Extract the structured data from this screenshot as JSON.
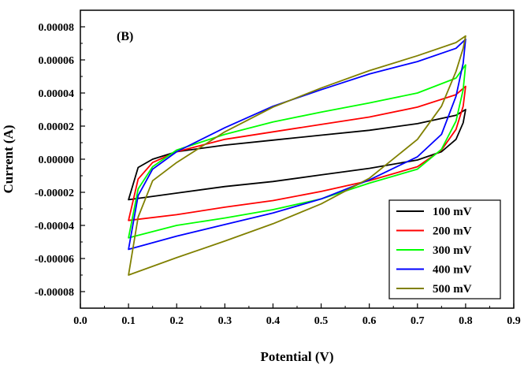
{
  "chart_data": {
    "type": "line",
    "panel_label": "(B)",
    "xlabel": "Potential (V)",
    "ylabel": "Current (A)",
    "xlim": [
      0.0,
      0.9
    ],
    "ylim": [
      -9e-05,
      9e-05
    ],
    "xticks": [
      0.0,
      0.1,
      0.2,
      0.3,
      0.4,
      0.5,
      0.6,
      0.7,
      0.8,
      0.9
    ],
    "xtick_labels": [
      "0.0",
      "0.1",
      "0.2",
      "0.3",
      "0.4",
      "0.5",
      "0.6",
      "0.7",
      "0.8",
      "0.9"
    ],
    "yticks": [
      8e-05,
      6e-05,
      4e-05,
      2e-05,
      0.0,
      -2e-05,
      -4e-05,
      -6e-05,
      -8e-05
    ],
    "ytick_labels": [
      "0.00008",
      "0.00006",
      "0.00004",
      "0.00002",
      "0.00000",
      "-0.00002",
      "-0.00004",
      "-0.00006",
      "-0.00008"
    ],
    "grid": false,
    "legend_position": "bottom-right",
    "series": [
      {
        "name": "100 mV",
        "color": "#000000",
        "forward": [
          [
            0.1,
            -2.45e-05
          ],
          [
            0.12,
            -5e-06
          ],
          [
            0.15,
            0.0
          ],
          [
            0.2,
            4.5e-06
          ],
          [
            0.3,
            8.5e-06
          ],
          [
            0.4,
            1.15e-05
          ],
          [
            0.5,
            1.45e-05
          ],
          [
            0.6,
            1.75e-05
          ],
          [
            0.7,
            2.15e-05
          ],
          [
            0.78,
            2.65e-05
          ],
          [
            0.8,
            3e-05
          ]
        ],
        "reverse": [
          [
            0.8,
            3e-05
          ],
          [
            0.795,
            2.2e-05
          ],
          [
            0.78,
            1.2e-05
          ],
          [
            0.75,
            4.5e-06
          ],
          [
            0.7,
            -5e-07
          ],
          [
            0.6,
            -5.5e-06
          ],
          [
            0.5,
            -9.5e-06
          ],
          [
            0.4,
            -1.35e-05
          ],
          [
            0.3,
            -1.65e-05
          ],
          [
            0.2,
            -2.05e-05
          ],
          [
            0.1,
            -2.45e-05
          ]
        ]
      },
      {
        "name": "200 mV",
        "color": "#ff0000",
        "forward": [
          [
            0.1,
            -3.7e-05
          ],
          [
            0.12,
            -1.2e-05
          ],
          [
            0.15,
            -2e-06
          ],
          [
            0.2,
            4.5e-06
          ],
          [
            0.3,
            1.2e-05
          ],
          [
            0.4,
            1.65e-05
          ],
          [
            0.5,
            2.1e-05
          ],
          [
            0.6,
            2.55e-05
          ],
          [
            0.7,
            3.15e-05
          ],
          [
            0.78,
            3.9e-05
          ],
          [
            0.8,
            4.4e-05
          ]
        ],
        "reverse": [
          [
            0.8,
            4.4e-05
          ],
          [
            0.795,
            3.2e-05
          ],
          [
            0.78,
            1.8e-05
          ],
          [
            0.75,
            5.5e-06
          ],
          [
            0.7,
            -4.5e-06
          ],
          [
            0.6,
            -1.3e-05
          ],
          [
            0.5,
            -1.95e-05
          ],
          [
            0.4,
            -2.5e-05
          ],
          [
            0.3,
            -2.9e-05
          ],
          [
            0.2,
            -3.35e-05
          ],
          [
            0.1,
            -3.7e-05
          ]
        ]
      },
      {
        "name": "300 mV",
        "color": "#00ff00",
        "forward": [
          [
            0.1,
            -4.75e-05
          ],
          [
            0.12,
            -1.8e-05
          ],
          [
            0.15,
            -4.5e-06
          ],
          [
            0.2,
            5.5e-06
          ],
          [
            0.3,
            1.5e-05
          ],
          [
            0.4,
            2.25e-05
          ],
          [
            0.5,
            2.85e-05
          ],
          [
            0.6,
            3.4e-05
          ],
          [
            0.7,
            4e-05
          ],
          [
            0.78,
            4.9e-05
          ],
          [
            0.8,
            5.7e-05
          ]
        ],
        "reverse": [
          [
            0.8,
            5.7e-05
          ],
          [
            0.795,
            4.2e-05
          ],
          [
            0.78,
            2.3e-05
          ],
          [
            0.75,
            6e-06
          ],
          [
            0.7,
            -6e-06
          ],
          [
            0.6,
            -1.45e-05
          ],
          [
            0.5,
            -2.4e-05
          ],
          [
            0.4,
            -3.05e-05
          ],
          [
            0.3,
            -3.55e-05
          ],
          [
            0.2,
            -4e-05
          ],
          [
            0.1,
            -4.75e-05
          ]
        ]
      },
      {
        "name": "400 mV",
        "color": "#0000ff",
        "forward": [
          [
            0.1,
            -5.45e-05
          ],
          [
            0.12,
            -2.2e-05
          ],
          [
            0.15,
            -6e-06
          ],
          [
            0.2,
            4.5e-06
          ],
          [
            0.3,
            1.9e-05
          ],
          [
            0.4,
            3.2e-05
          ],
          [
            0.5,
            4.2e-05
          ],
          [
            0.6,
            5.15e-05
          ],
          [
            0.7,
            5.9e-05
          ],
          [
            0.78,
            6.7e-05
          ],
          [
            0.8,
            7.25e-05
          ]
        ],
        "reverse": [
          [
            0.8,
            7.25e-05
          ],
          [
            0.795,
            5.8e-05
          ],
          [
            0.78,
            3.8e-05
          ],
          [
            0.75,
            1.5e-05
          ],
          [
            0.7,
            1.5e-06
          ],
          [
            0.6,
            -1.25e-05
          ],
          [
            0.5,
            -2.4e-05
          ],
          [
            0.4,
            -3.25e-05
          ],
          [
            0.3,
            -3.95e-05
          ],
          [
            0.2,
            -4.65e-05
          ],
          [
            0.1,
            -5.45e-05
          ]
        ]
      },
      {
        "name": "500 mV",
        "color": "#808000",
        "forward": [
          [
            0.1,
            -7e-05
          ],
          [
            0.12,
            -3.5e-05
          ],
          [
            0.15,
            -1.3e-05
          ],
          [
            0.2,
            -2e-06
          ],
          [
            0.3,
            1.65e-05
          ],
          [
            0.4,
            3.15e-05
          ],
          [
            0.5,
            4.3e-05
          ],
          [
            0.6,
            5.35e-05
          ],
          [
            0.7,
            6.25e-05
          ],
          [
            0.78,
            7.05e-05
          ],
          [
            0.8,
            7.45e-05
          ]
        ],
        "reverse": [
          [
            0.8,
            7.45e-05
          ],
          [
            0.795,
            6.7e-05
          ],
          [
            0.78,
            5.3e-05
          ],
          [
            0.75,
            3.2e-05
          ],
          [
            0.7,
            1.2e-05
          ],
          [
            0.6,
            -1.15e-05
          ],
          [
            0.5,
            -2.7e-05
          ],
          [
            0.4,
            -3.9e-05
          ],
          [
            0.3,
            -4.95e-05
          ],
          [
            0.2,
            -5.95e-05
          ],
          [
            0.1,
            -7e-05
          ]
        ]
      }
    ]
  }
}
